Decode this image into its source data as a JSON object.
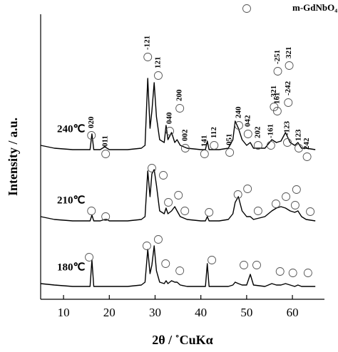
{
  "chart_data": {
    "type": "line",
    "x_label": "2θ / ˚CuKα",
    "y_label": "Intensity / a.u.",
    "legend_label": "m-GdNbO₄",
    "xlim": [
      5,
      67
    ],
    "xticks": [
      10,
      20,
      30,
      40,
      50,
      60
    ],
    "ylim": [
      0,
      100
    ],
    "x": [
      5,
      8,
      12,
      15,
      15.8,
      16.2,
      16.6,
      18,
      19,
      19.5,
      20,
      24,
      27,
      27.8,
      28.4,
      28.9,
      29.3,
      29.8,
      30.3,
      31,
      32,
      32.4,
      32.8,
      33.6,
      34.3,
      34.8,
      35.5,
      37,
      40,
      41,
      41.4,
      41.8,
      44,
      46,
      47,
      47.5,
      48.2,
      49,
      50,
      50.8,
      51.5,
      54,
      55.5,
      56.5,
      57.5,
      58.5,
      59.5,
      60.5,
      61.2,
      62,
      63,
      65
    ],
    "series": [
      {
        "name": "240℃",
        "color": "#000000",
        "values": [
          54,
          53,
          52.5,
          52.5,
          52.5,
          58,
          52.5,
          52.5,
          53.5,
          53,
          52.5,
          52.5,
          53,
          54,
          77.5,
          60,
          66,
          76,
          64,
          56,
          55,
          61,
          56,
          58.5,
          55,
          56,
          54,
          53,
          52.5,
          52.5,
          55.5,
          52.5,
          52.5,
          53,
          56,
          62.5,
          60,
          56,
          54,
          55,
          53,
          53,
          56,
          55,
          55.5,
          58.5,
          55,
          54,
          55,
          53,
          53,
          52.5
        ],
        "reflections": {
          "x": [
            16.1,
            19.2,
            28.4,
            30.7,
            33.2,
            35.4,
            36.6,
            40.8,
            42.9,
            46.3,
            48.3,
            50.3,
            52.5,
            55.3,
            56.0,
            56.7,
            56.8,
            58.9,
            59.1,
            59.3,
            61.4,
            63.2
          ],
          "values": [
            57.5,
            51,
            85,
            78.5,
            59,
            67,
            53,
            51,
            54,
            51.5,
            61,
            58,
            54,
            54,
            67.5,
            66,
            80,
            55,
            69,
            82,
            53,
            50
          ],
          "labels": [
            "020",
            "011",
            "-121",
            "121",
            "040",
            "200",
            "002",
            "141",
            "112",
            "051",
            "240",
            "042",
            "202",
            "-161",
            "-321",
            "161",
            "-251",
            "-123",
            "-242",
            "321",
            "123",
            "242"
          ]
        }
      },
      {
        "name": "210℃",
        "color": "#000000",
        "values": [
          29,
          28,
          27.5,
          27.5,
          27.5,
          29.5,
          27.5,
          27.5,
          28,
          28,
          27.5,
          27.5,
          28,
          29,
          45,
          36,
          44,
          45.5,
          40,
          31,
          30,
          32,
          30,
          31,
          32.5,
          31,
          29,
          28,
          27.5,
          27.5,
          29,
          27.5,
          27.5,
          28,
          30,
          34,
          36,
          31,
          29,
          29,
          28,
          29,
          31,
          32,
          32.5,
          32,
          31,
          30.5,
          31,
          29,
          28,
          27.5
        ],
        "reflections": {
          "x": [
            16.1,
            19.2,
            29.3,
            31.8,
            32.9,
            35.1,
            36.5,
            41.8,
            48.1,
            50.2,
            52.5,
            56.4,
            58.6,
            60.6,
            60.9,
            63.9
          ],
          "values": [
            31,
            29,
            46,
            43.5,
            34,
            36.5,
            31,
            30.5,
            36.75,
            38.75,
            31,
            33.5,
            36,
            33,
            38.5,
            30.75
          ]
        }
      },
      {
        "name": "180℃",
        "color": "#000000",
        "values": [
          5.5,
          5,
          4.5,
          4.5,
          4.5,
          13.75,
          4.5,
          4.5,
          4.5,
          4.5,
          4.5,
          4.5,
          5,
          6,
          17.5,
          9,
          12,
          18.75,
          10,
          6,
          5.5,
          6.5,
          5.5,
          6.5,
          6,
          6,
          5,
          4.5,
          4.5,
          4.5,
          12.5,
          4.5,
          4.5,
          4.5,
          5,
          6,
          5.5,
          5,
          5,
          8.75,
          5,
          4.5,
          5.5,
          5,
          5,
          5.5,
          5,
          4.5,
          5,
          4.5,
          4.5,
          4.5
        ],
        "reflections": {
          "x": [
            15.6,
            28.2,
            30.7,
            32.3,
            35.4,
            42.4,
            49.4,
            52.2,
            57.3,
            60.1,
            63.4
          ],
          "values": [
            14.75,
            18.75,
            21,
            12.5,
            10,
            13.75,
            12,
            12,
            9.75,
            9.25,
            9.25
          ]
        }
      }
    ]
  }
}
